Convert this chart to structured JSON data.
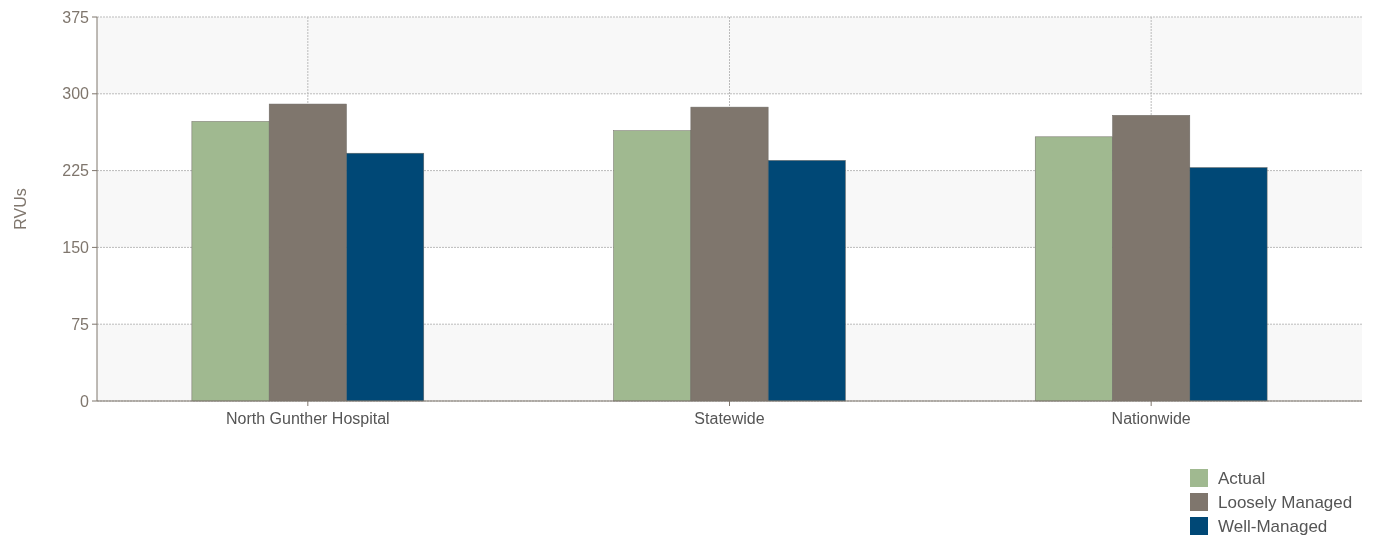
{
  "chart_data": {
    "type": "bar",
    "ylabel": "RVUs",
    "categories": [
      "North Gunther Hospital",
      "Statewide",
      "Nationwide"
    ],
    "series": [
      {
        "name": "Actual",
        "color": "#a0b990",
        "values": [
          273,
          264,
          258
        ]
      },
      {
        "name": "Loosely Managed",
        "color": "#7f766d",
        "values": [
          290,
          287,
          279
        ]
      },
      {
        "name": "Well-Managed",
        "color": "#004876",
        "values": [
          242,
          235,
          228
        ]
      }
    ],
    "ylim": [
      0,
      375
    ],
    "yticks": [
      0,
      75,
      150,
      225,
      300,
      375
    ],
    "grid": true,
    "legend": "bottom right"
  }
}
